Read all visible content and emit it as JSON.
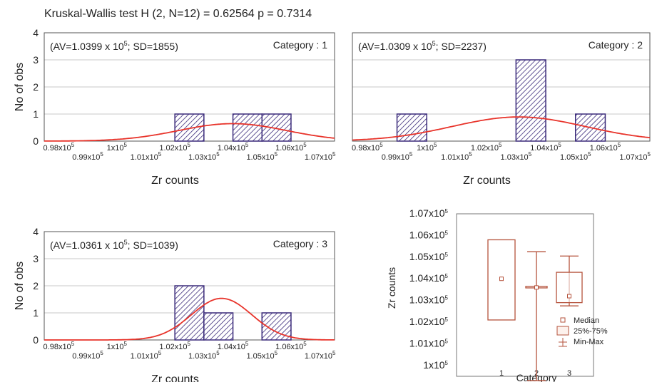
{
  "figure_title": "Kruskal-Wallis test  H (2, N=12) = 0.62564 p = 0.7314",
  "colors": {
    "bar_fill": "#ffffff",
    "bar_stroke": "#3a2a7a",
    "hatch": "#3a2a7a",
    "curve": "#e8332a",
    "grid": "#c8c8c8",
    "box": "#b5533c"
  },
  "chart_data": [
    {
      "type": "bar",
      "subtype": "histogram_with_normal_fit",
      "annotation": {
        "prefix": "(AV=1.0399 x 10",
        "sup": "5",
        "suffix": "; SD=1855)"
      },
      "category_label": "Category : 1",
      "xlabel": "Zr counts",
      "ylabel": "No of obs",
      "xlim": [
        97500,
        107500
      ],
      "ylim": [
        0,
        4
      ],
      "y_ticks": [
        "0",
        "1",
        "2",
        "3",
        "4"
      ],
      "x_ticks_upper": [
        {
          "v": 98000,
          "base": "0.98x10",
          "exp": "5"
        },
        {
          "v": 100000,
          "base": "1x10",
          "exp": "5"
        },
        {
          "v": 102000,
          "base": "1.02x10",
          "exp": "5"
        },
        {
          "v": 104000,
          "base": "1.04x10",
          "exp": "5"
        },
        {
          "v": 106000,
          "base": "1.06x10",
          "exp": "5"
        }
      ],
      "x_ticks_lower": [
        {
          "v": 99000,
          "base": "0.99x10",
          "exp": "5"
        },
        {
          "v": 101000,
          "base": "1.01x10",
          "exp": "5"
        },
        {
          "v": 103000,
          "base": "1.03x10",
          "exp": "5"
        },
        {
          "v": 105000,
          "base": "1.05x10",
          "exp": "5"
        },
        {
          "v": 107000,
          "base": "1.07x10",
          "exp": "5"
        }
      ],
      "bins": [
        {
          "from": 102000,
          "to": 103000,
          "count": 1
        },
        {
          "from": 104000,
          "to": 105000,
          "count": 1
        },
        {
          "from": 105000,
          "to": 106000,
          "count": 1
        }
      ],
      "normal_fit": {
        "mean": 103990,
        "sd": 1855
      }
    },
    {
      "type": "bar",
      "subtype": "histogram_with_normal_fit",
      "annotation": {
        "prefix": "(AV=1.0309 x 10",
        "sup": "5",
        "suffix": "; SD=2237)"
      },
      "category_label": "Category : 2",
      "xlabel": "Zr counts",
      "ylabel": "",
      "xlim": [
        97500,
        107500
      ],
      "ylim": [
        0,
        4
      ],
      "y_ticks": [],
      "x_ticks_upper": [
        {
          "v": 98000,
          "base": "0.98x10",
          "exp": "5"
        },
        {
          "v": 100000,
          "base": "1x10",
          "exp": "5"
        },
        {
          "v": 102000,
          "base": "1.02x10",
          "exp": "5"
        },
        {
          "v": 104000,
          "base": "1.04x10",
          "exp": "5"
        },
        {
          "v": 106000,
          "base": "1.06x10",
          "exp": "5"
        }
      ],
      "x_ticks_lower": [
        {
          "v": 99000,
          "base": "0.99x10",
          "exp": "5"
        },
        {
          "v": 101000,
          "base": "1.01x10",
          "exp": "5"
        },
        {
          "v": 103000,
          "base": "1.03x10",
          "exp": "5"
        },
        {
          "v": 105000,
          "base": "1.05x10",
          "exp": "5"
        },
        {
          "v": 107000,
          "base": "1.07x10",
          "exp": "5"
        }
      ],
      "bins": [
        {
          "from": 99000,
          "to": 100000,
          "count": 1
        },
        {
          "from": 103000,
          "to": 104000,
          "count": 3
        },
        {
          "from": 105000,
          "to": 106000,
          "count": 1
        }
      ],
      "normal_fit": {
        "mean": 103090,
        "sd": 2237
      }
    },
    {
      "type": "bar",
      "subtype": "histogram_with_normal_fit",
      "annotation": {
        "prefix": "(AV=1.0361 x 10",
        "sup": "5",
        "suffix": "; SD=1039)"
      },
      "category_label": "Category : 3",
      "xlabel": "Zr counts",
      "ylabel": "No of obs",
      "xlim": [
        97500,
        107500
      ],
      "ylim": [
        0,
        4
      ],
      "y_ticks": [
        "0",
        "1",
        "2",
        "3",
        "4"
      ],
      "x_ticks_upper": [
        {
          "v": 98000,
          "base": "0.98x10",
          "exp": "5"
        },
        {
          "v": 100000,
          "base": "1x10",
          "exp": "5"
        },
        {
          "v": 102000,
          "base": "1.02x10",
          "exp": "5"
        },
        {
          "v": 104000,
          "base": "1.04x10",
          "exp": "5"
        },
        {
          "v": 106000,
          "base": "1.06x10",
          "exp": "5"
        }
      ],
      "x_ticks_lower": [
        {
          "v": 99000,
          "base": "0.99x10",
          "exp": "5"
        },
        {
          "v": 101000,
          "base": "1.01x10",
          "exp": "5"
        },
        {
          "v": 103000,
          "base": "1.03x10",
          "exp": "5"
        },
        {
          "v": 105000,
          "base": "1.05x10",
          "exp": "5"
        },
        {
          "v": 107000,
          "base": "1.07x10",
          "exp": "5"
        }
      ],
      "bins": [
        {
          "from": 102000,
          "to": 103000,
          "count": 2
        },
        {
          "from": 103000,
          "to": 104000,
          "count": 1
        },
        {
          "from": 105000,
          "to": 106000,
          "count": 1
        }
      ],
      "normal_fit": {
        "mean": 103610,
        "sd": 1039
      }
    },
    {
      "type": "box",
      "xlabel": "Category",
      "ylabel": "Zr counts",
      "ylim": [
        99500,
        107000
      ],
      "y_ticks": [
        {
          "v": 100000,
          "base": "1x10",
          "exp": "5"
        },
        {
          "v": 101000,
          "base": "1.01x10",
          "exp": "5"
        },
        {
          "v": 102000,
          "base": "1.02x10",
          "exp": "5"
        },
        {
          "v": 103000,
          "base": "1.03x10",
          "exp": "5"
        },
        {
          "v": 104000,
          "base": "1.04x10",
          "exp": "5"
        },
        {
          "v": 105000,
          "base": "1.05x10",
          "exp": "5"
        },
        {
          "v": 106000,
          "base": "1.06x10",
          "exp": "5"
        },
        {
          "v": 107000,
          "base": "1.07x10",
          "exp": "5"
        }
      ],
      "categories": [
        "1",
        "2",
        "3"
      ],
      "boxes": [
        {
          "category": "1",
          "median": 104000,
          "q1": 102100,
          "q3": 105800
        },
        {
          "category": "2",
          "median": 103600,
          "q1": 103580,
          "q3": 103650,
          "min": 99300,
          "max": 105250
        },
        {
          "category": "3",
          "median": 103200,
          "q1": 102900,
          "q3": 104300,
          "min": 102750,
          "max": 105050
        }
      ],
      "legend": [
        "Median",
        "25%-75%",
        "Min-Max"
      ]
    }
  ]
}
